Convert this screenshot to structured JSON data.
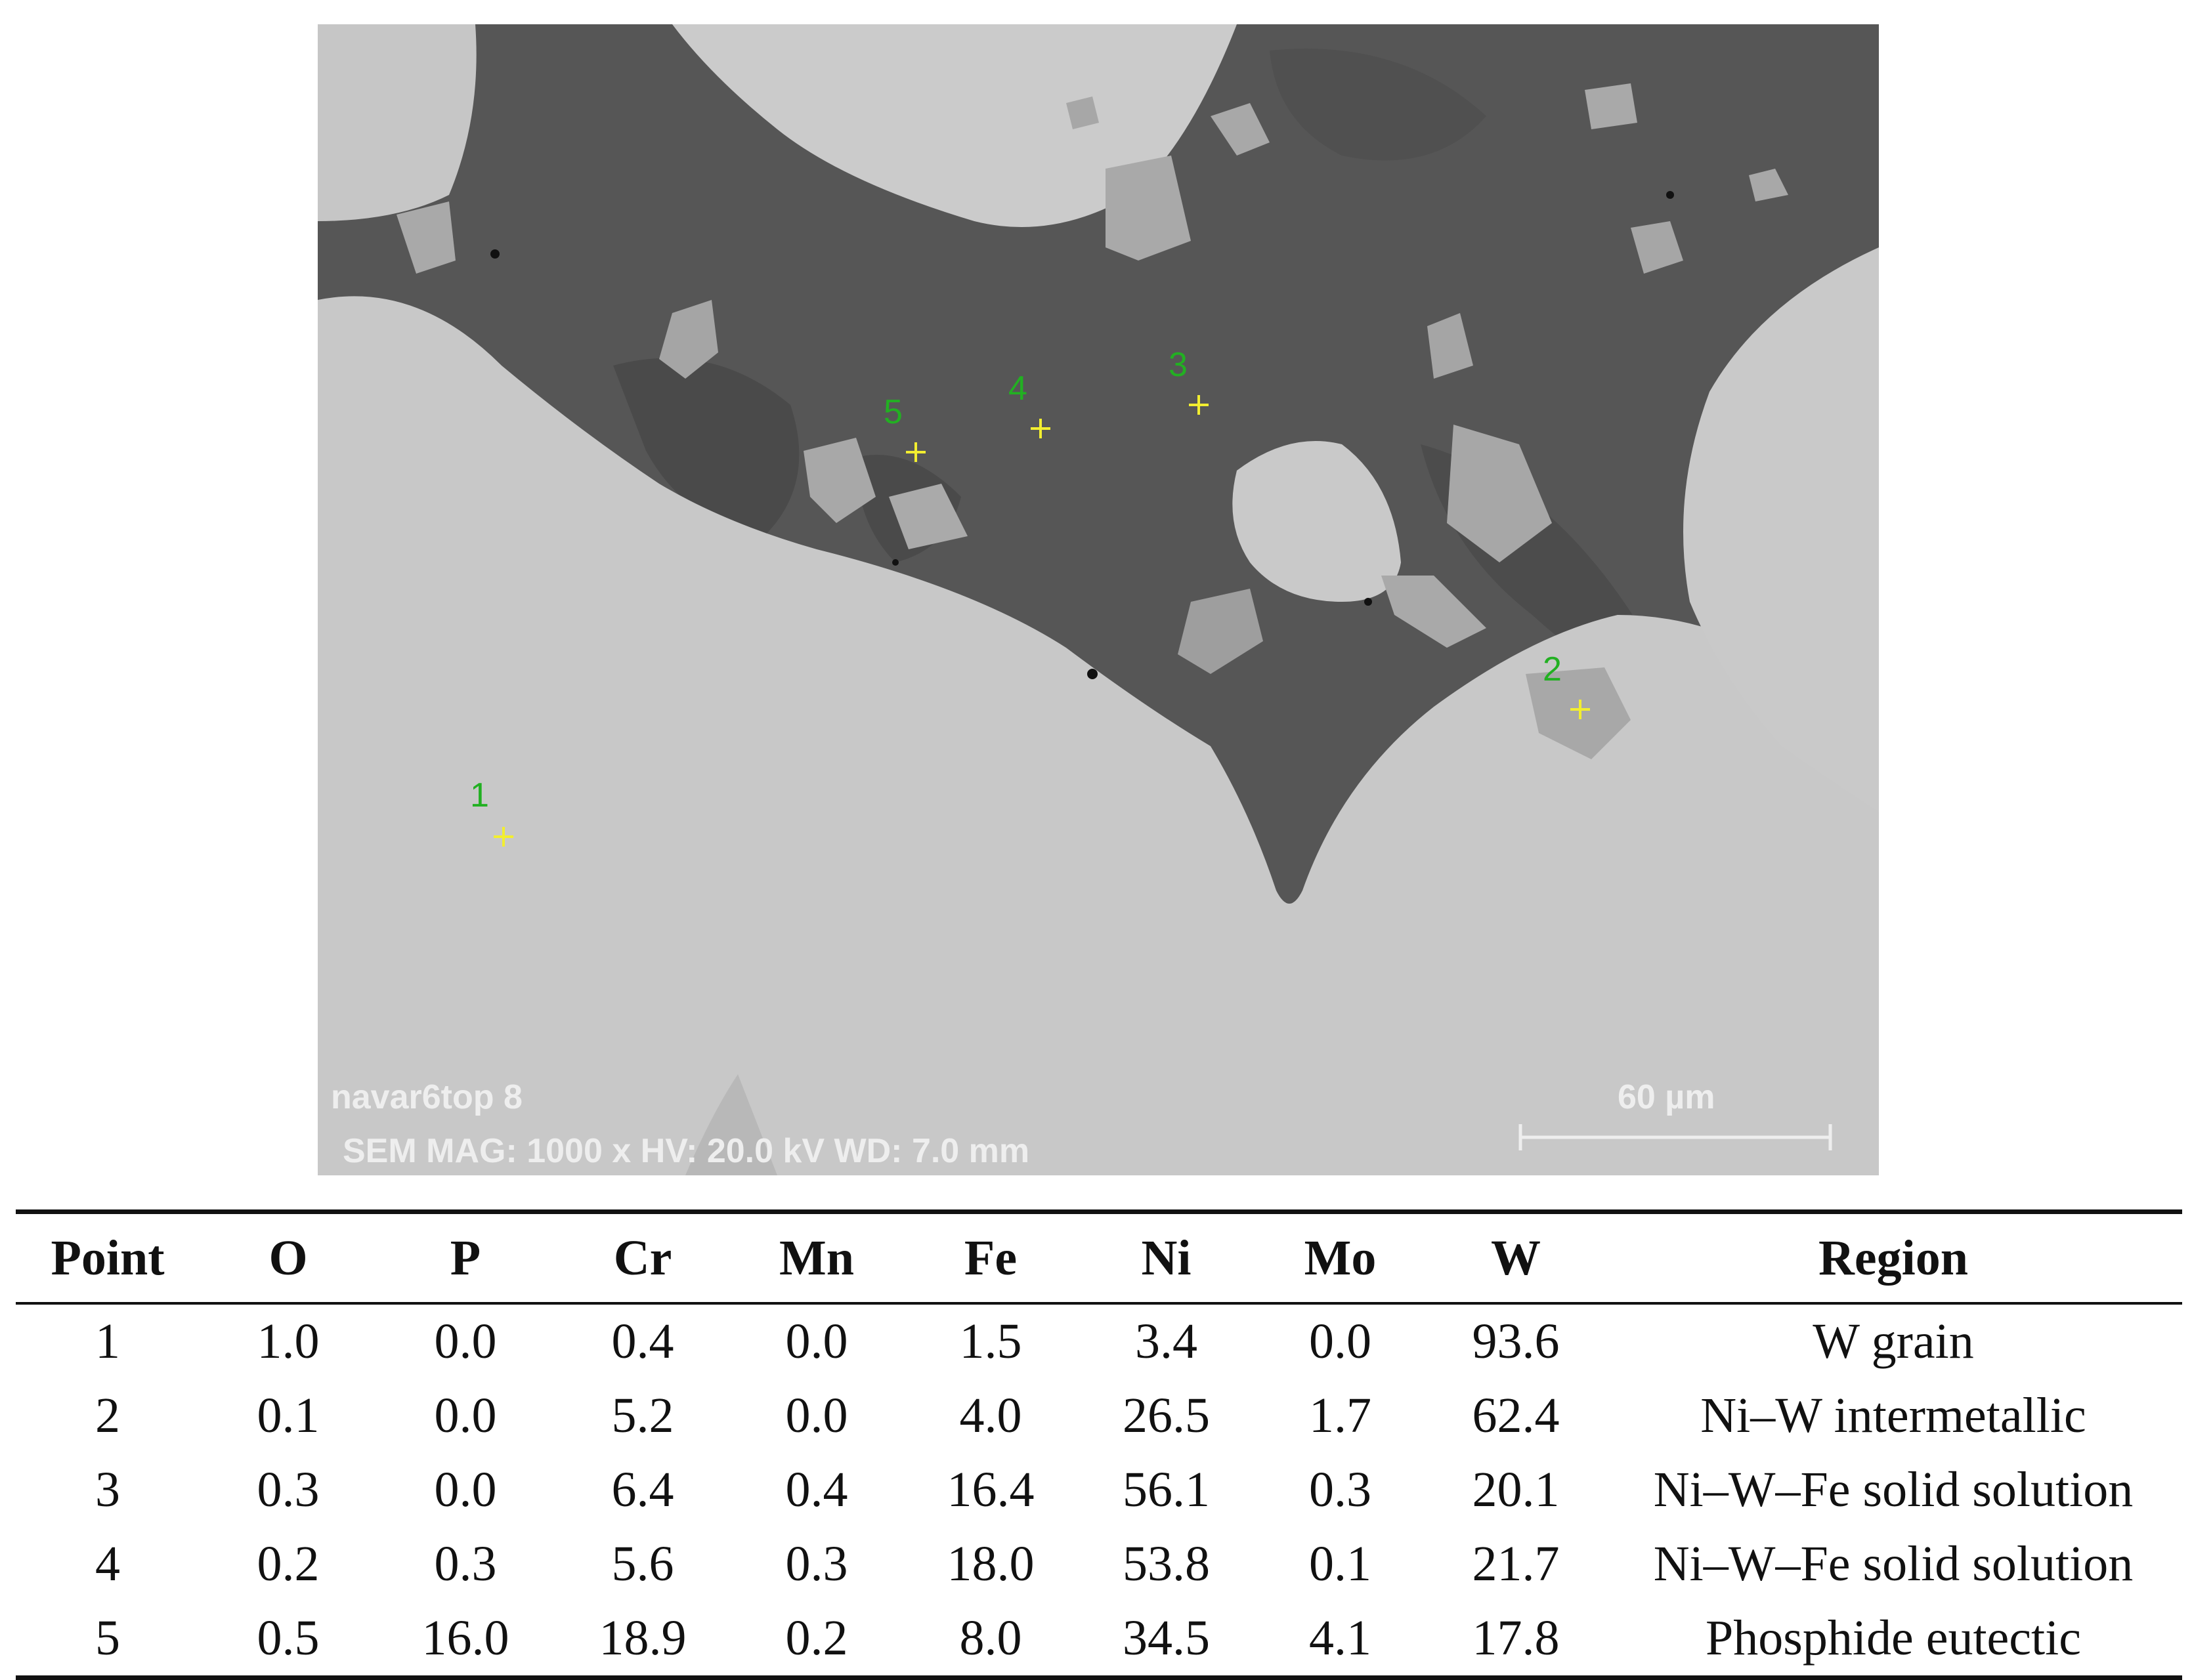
{
  "micrograph": {
    "label": "navar6top 8",
    "info": "SEM   MAG: 1000 x   HV: 20.0 kV   WD: 7.0 mm",
    "scale_bar": "60 µm",
    "markers": [
      "1",
      "2",
      "3",
      "4",
      "5"
    ]
  },
  "table": {
    "headers": [
      "Point",
      "O",
      "P",
      "Cr",
      "Mn",
      "Fe",
      "Ni",
      "Mo",
      "W",
      "Region"
    ],
    "rows": [
      [
        "1",
        "1.0",
        "0.0",
        "0.4",
        "0.0",
        "1.5",
        "3.4",
        "0.0",
        "93.6",
        "W grain"
      ],
      [
        "2",
        "0.1",
        "0.0",
        "5.2",
        "0.0",
        "4.0",
        "26.5",
        "1.7",
        "62.4",
        "Ni–W intermetallic"
      ],
      [
        "3",
        "0.3",
        "0.0",
        "6.4",
        "0.4",
        "16.4",
        "56.1",
        "0.3",
        "20.1",
        "Ni–W–Fe solid solution"
      ],
      [
        "4",
        "0.2",
        "0.3",
        "5.6",
        "0.3",
        "18.0",
        "53.8",
        "0.1",
        "21.7",
        "Ni–W–Fe solid solution"
      ],
      [
        "5",
        "0.5",
        "16.0",
        "18.9",
        "0.2",
        "8.0",
        "34.5",
        "4.1",
        "17.8",
        "Phosphide eutectic"
      ]
    ]
  }
}
